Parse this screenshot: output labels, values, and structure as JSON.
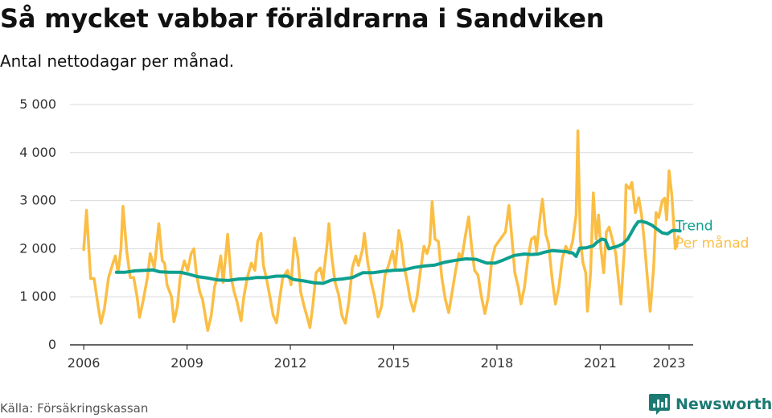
{
  "title": "Så mycket vabbar föräldrarna i Sandviken",
  "subtitle": "Antal nettodagar per månad.",
  "source": "Källa: Försäkringskassan",
  "brand": "Newsworthy",
  "colors": {
    "trend": "#0e9f8f",
    "monthly": "#fbbe45",
    "grid": "#d9d9d9",
    "axis": "#333333",
    "brand": "#1c7a72"
  },
  "chart_data": {
    "type": "line",
    "x_unit": "year",
    "ylim": [
      0,
      5000
    ],
    "xlim": [
      2005.6,
      2023.7
    ],
    "y_ticks": [
      {
        "value": 0,
        "label": "0"
      },
      {
        "value": 1000,
        "label": "1 000"
      },
      {
        "value": 2000,
        "label": "2 000"
      },
      {
        "value": 3000,
        "label": "3 000"
      },
      {
        "value": 4000,
        "label": "4 000"
      },
      {
        "value": 5000,
        "label": "5 000"
      }
    ],
    "x_ticks": [
      {
        "value": 2006,
        "label": "2006"
      },
      {
        "value": 2009,
        "label": "2009"
      },
      {
        "value": 2012,
        "label": "2012"
      },
      {
        "value": 2015,
        "label": "2015"
      },
      {
        "value": 2018,
        "label": "2018"
      },
      {
        "value": 2021,
        "label": "2021"
      },
      {
        "value": 2023,
        "label": "2023"
      }
    ],
    "series": [
      {
        "name": "Per månad",
        "color": "#fbbe45",
        "points": [
          [
            2006.0,
            1980
          ],
          [
            2006.08,
            2800
          ],
          [
            2006.2,
            1380
          ],
          [
            2006.3,
            1380
          ],
          [
            2006.42,
            800
          ],
          [
            2006.5,
            450
          ],
          [
            2006.6,
            750
          ],
          [
            2006.72,
            1400
          ],
          [
            2006.85,
            1700
          ],
          [
            2006.92,
            1850
          ],
          [
            2007.0,
            1500
          ],
          [
            2007.08,
            2000
          ],
          [
            2007.14,
            2880
          ],
          [
            2007.25,
            1950
          ],
          [
            2007.35,
            1400
          ],
          [
            2007.45,
            1400
          ],
          [
            2007.55,
            1000
          ],
          [
            2007.62,
            570
          ],
          [
            2007.72,
            900
          ],
          [
            2007.85,
            1400
          ],
          [
            2007.93,
            1900
          ],
          [
            2008.05,
            1600
          ],
          [
            2008.18,
            2520
          ],
          [
            2008.28,
            1750
          ],
          [
            2008.35,
            1700
          ],
          [
            2008.42,
            1250
          ],
          [
            2008.55,
            1000
          ],
          [
            2008.62,
            480
          ],
          [
            2008.72,
            800
          ],
          [
            2008.8,
            1400
          ],
          [
            2008.92,
            1750
          ],
          [
            2009.02,
            1550
          ],
          [
            2009.12,
            1900
          ],
          [
            2009.2,
            2000
          ],
          [
            2009.27,
            1500
          ],
          [
            2009.37,
            1100
          ],
          [
            2009.45,
            950
          ],
          [
            2009.53,
            600
          ],
          [
            2009.6,
            300
          ],
          [
            2009.7,
            600
          ],
          [
            2009.8,
            1200
          ],
          [
            2009.9,
            1500
          ],
          [
            2009.98,
            1850
          ],
          [
            2010.05,
            1300
          ],
          [
            2010.18,
            2300
          ],
          [
            2010.28,
            1400
          ],
          [
            2010.37,
            1100
          ],
          [
            2010.45,
            900
          ],
          [
            2010.57,
            500
          ],
          [
            2010.65,
            1000
          ],
          [
            2010.75,
            1400
          ],
          [
            2010.87,
            1700
          ],
          [
            2010.97,
            1550
          ],
          [
            2011.05,
            2150
          ],
          [
            2011.15,
            2320
          ],
          [
            2011.22,
            1650
          ],
          [
            2011.3,
            1400
          ],
          [
            2011.42,
            950
          ],
          [
            2011.5,
            620
          ],
          [
            2011.6,
            460
          ],
          [
            2011.68,
            900
          ],
          [
            2011.78,
            1400
          ],
          [
            2011.92,
            1550
          ],
          [
            2012.02,
            1250
          ],
          [
            2012.12,
            2220
          ],
          [
            2012.22,
            1800
          ],
          [
            2012.3,
            1100
          ],
          [
            2012.4,
            800
          ],
          [
            2012.48,
            600
          ],
          [
            2012.57,
            360
          ],
          [
            2012.65,
            800
          ],
          [
            2012.75,
            1500
          ],
          [
            2012.87,
            1600
          ],
          [
            2012.95,
            1350
          ],
          [
            2013.07,
            2100
          ],
          [
            2013.12,
            2520
          ],
          [
            2013.2,
            1850
          ],
          [
            2013.3,
            1300
          ],
          [
            2013.4,
            1050
          ],
          [
            2013.5,
            600
          ],
          [
            2013.6,
            450
          ],
          [
            2013.7,
            900
          ],
          [
            2013.8,
            1600
          ],
          [
            2013.9,
            1850
          ],
          [
            2013.98,
            1650
          ],
          [
            2014.1,
            2000
          ],
          [
            2014.15,
            2320
          ],
          [
            2014.25,
            1700
          ],
          [
            2014.35,
            1300
          ],
          [
            2014.45,
            1000
          ],
          [
            2014.55,
            580
          ],
          [
            2014.65,
            800
          ],
          [
            2014.75,
            1450
          ],
          [
            2014.85,
            1650
          ],
          [
            2014.97,
            1950
          ],
          [
            2015.05,
            1600
          ],
          [
            2015.15,
            2380
          ],
          [
            2015.23,
            2100
          ],
          [
            2015.3,
            1650
          ],
          [
            2015.4,
            1300
          ],
          [
            2015.48,
            950
          ],
          [
            2015.58,
            700
          ],
          [
            2015.68,
            1000
          ],
          [
            2015.78,
            1550
          ],
          [
            2015.88,
            2050
          ],
          [
            2015.97,
            1900
          ],
          [
            2016.05,
            2100
          ],
          [
            2016.12,
            2980
          ],
          [
            2016.2,
            2200
          ],
          [
            2016.3,
            2150
          ],
          [
            2016.4,
            1400
          ],
          [
            2016.5,
            950
          ],
          [
            2016.6,
            670
          ],
          [
            2016.7,
            1100
          ],
          [
            2016.8,
            1550
          ],
          [
            2016.9,
            1900
          ],
          [
            2016.98,
            1800
          ],
          [
            2017.08,
            2250
          ],
          [
            2017.18,
            2660
          ],
          [
            2017.27,
            2000
          ],
          [
            2017.35,
            1550
          ],
          [
            2017.45,
            1450
          ],
          [
            2017.55,
            1000
          ],
          [
            2017.65,
            650
          ],
          [
            2017.75,
            1000
          ],
          [
            2017.85,
            1750
          ],
          [
            2017.95,
            2050
          ],
          [
            2018.05,
            2150
          ],
          [
            2018.15,
            2250
          ],
          [
            2018.25,
            2350
          ],
          [
            2018.35,
            2900
          ],
          [
            2018.45,
            2100
          ],
          [
            2018.52,
            1500
          ],
          [
            2018.62,
            1200
          ],
          [
            2018.7,
            850
          ],
          [
            2018.8,
            1200
          ],
          [
            2018.9,
            1800
          ],
          [
            2019.0,
            2200
          ],
          [
            2019.1,
            2250
          ],
          [
            2019.15,
            1950
          ],
          [
            2019.25,
            2650
          ],
          [
            2019.32,
            3030
          ],
          [
            2019.42,
            2300
          ],
          [
            2019.5,
            2100
          ],
          [
            2019.6,
            1400
          ],
          [
            2019.7,
            850
          ],
          [
            2019.8,
            1200
          ],
          [
            2019.9,
            1800
          ],
          [
            2020.0,
            2050
          ],
          [
            2020.1,
            1900
          ],
          [
            2020.2,
            2150
          ],
          [
            2020.3,
            2700
          ],
          [
            2020.35,
            4450
          ],
          [
            2020.42,
            2200
          ],
          [
            2020.5,
            1700
          ],
          [
            2020.58,
            1500
          ],
          [
            2020.63,
            700
          ],
          [
            2020.72,
            1500
          ],
          [
            2020.8,
            3160
          ],
          [
            2020.88,
            2200
          ],
          [
            2020.95,
            2700
          ],
          [
            2021.02,
            2000
          ],
          [
            2021.1,
            1500
          ],
          [
            2021.18,
            2350
          ],
          [
            2021.26,
            2450
          ],
          [
            2021.35,
            2200
          ],
          [
            2021.45,
            1900
          ],
          [
            2021.52,
            1400
          ],
          [
            2021.6,
            850
          ],
          [
            2021.7,
            2000
          ],
          [
            2021.75,
            3330
          ],
          [
            2021.85,
            3250
          ],
          [
            2021.92,
            3380
          ],
          [
            2022.02,
            2750
          ],
          [
            2022.12,
            3060
          ],
          [
            2022.2,
            2700
          ],
          [
            2022.28,
            2150
          ],
          [
            2022.38,
            1300
          ],
          [
            2022.45,
            700
          ],
          [
            2022.55,
            1600
          ],
          [
            2022.62,
            2750
          ],
          [
            2022.7,
            2650
          ],
          [
            2022.8,
            3000
          ],
          [
            2022.87,
            3050
          ],
          [
            2022.93,
            2600
          ],
          [
            2023.0,
            3620
          ],
          [
            2023.08,
            3100
          ],
          [
            2023.18,
            2000
          ],
          [
            2023.27,
            2250
          ]
        ]
      },
      {
        "name": "Trend",
        "color": "#0e9f8f",
        "points": [
          [
            2006.95,
            1510
          ],
          [
            2007.2,
            1510
          ],
          [
            2007.5,
            1540
          ],
          [
            2007.8,
            1550
          ],
          [
            2008.0,
            1560
          ],
          [
            2008.2,
            1520
          ],
          [
            2008.5,
            1510
          ],
          [
            2008.8,
            1510
          ],
          [
            2009.0,
            1480
          ],
          [
            2009.3,
            1420
          ],
          [
            2009.6,
            1390
          ],
          [
            2009.9,
            1350
          ],
          [
            2010.2,
            1340
          ],
          [
            2010.5,
            1370
          ],
          [
            2010.8,
            1380
          ],
          [
            2011.0,
            1400
          ],
          [
            2011.3,
            1400
          ],
          [
            2011.6,
            1430
          ],
          [
            2011.9,
            1430
          ],
          [
            2012.1,
            1360
          ],
          [
            2012.4,
            1330
          ],
          [
            2012.7,
            1290
          ],
          [
            2012.95,
            1280
          ],
          [
            2013.2,
            1350
          ],
          [
            2013.5,
            1370
          ],
          [
            2013.8,
            1400
          ],
          [
            2014.1,
            1500
          ],
          [
            2014.4,
            1500
          ],
          [
            2014.7,
            1530
          ],
          [
            2015.0,
            1550
          ],
          [
            2015.3,
            1560
          ],
          [
            2015.6,
            1610
          ],
          [
            2015.9,
            1640
          ],
          [
            2016.2,
            1660
          ],
          [
            2016.5,
            1720
          ],
          [
            2016.8,
            1760
          ],
          [
            2017.1,
            1790
          ],
          [
            2017.4,
            1780
          ],
          [
            2017.7,
            1700
          ],
          [
            2017.95,
            1700
          ],
          [
            2018.2,
            1770
          ],
          [
            2018.5,
            1860
          ],
          [
            2018.8,
            1890
          ],
          [
            2019.0,
            1880
          ],
          [
            2019.2,
            1890
          ],
          [
            2019.4,
            1930
          ],
          [
            2019.6,
            1960
          ],
          [
            2019.8,
            1950
          ],
          [
            2020.0,
            1940
          ],
          [
            2020.2,
            1910
          ],
          [
            2020.3,
            1840
          ],
          [
            2020.4,
            2010
          ],
          [
            2020.6,
            2020
          ],
          [
            2020.8,
            2060
          ],
          [
            2020.9,
            2130
          ],
          [
            2021.05,
            2200
          ],
          [
            2021.15,
            2180
          ],
          [
            2021.25,
            2000
          ],
          [
            2021.35,
            2020
          ],
          [
            2021.5,
            2050
          ],
          [
            2021.65,
            2100
          ],
          [
            2021.8,
            2200
          ],
          [
            2021.9,
            2330
          ],
          [
            2022.0,
            2460
          ],
          [
            2022.1,
            2560
          ],
          [
            2022.2,
            2570
          ],
          [
            2022.35,
            2540
          ],
          [
            2022.5,
            2490
          ],
          [
            2022.65,
            2410
          ],
          [
            2022.8,
            2330
          ],
          [
            2022.95,
            2310
          ],
          [
            2023.1,
            2380
          ],
          [
            2023.2,
            2380
          ],
          [
            2023.32,
            2370
          ]
        ]
      }
    ],
    "legend": [
      {
        "label": "Trend",
        "color": "#0e9f8f",
        "value": 2480
      },
      {
        "label": "Per månad",
        "color": "#fbbe45",
        "value": 2120
      }
    ]
  }
}
